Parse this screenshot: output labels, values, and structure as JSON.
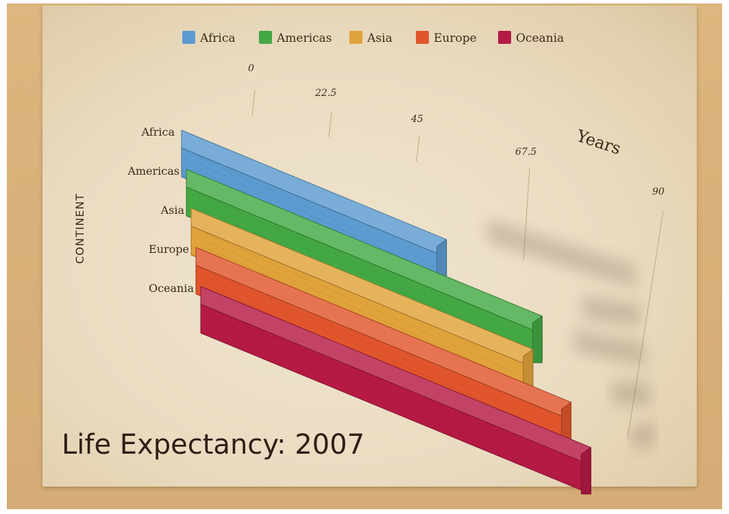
{
  "chart_data": {
    "type": "bar",
    "title": "Life Expectancy: 2007",
    "xlabel": "Years",
    "ylabel": "CONTINENT",
    "categories": [
      "Africa",
      "Americas",
      "Asia",
      "Europe",
      "Oceania"
    ],
    "values": [
      54.8,
      73.6,
      70.7,
      77.6,
      80.7
    ],
    "colors": [
      "#5b9bd0",
      "#43a843",
      "#e0a23a",
      "#e0552c",
      "#b51a45"
    ],
    "xlim": [
      0,
      90
    ],
    "xticks": [
      "0",
      "22.5",
      "45",
      "67.5",
      "90"
    ],
    "legend": {
      "position": "top",
      "entries": [
        "Africa",
        "Americas",
        "Asia",
        "Europe",
        "Oceania"
      ]
    },
    "grid": true
  }
}
